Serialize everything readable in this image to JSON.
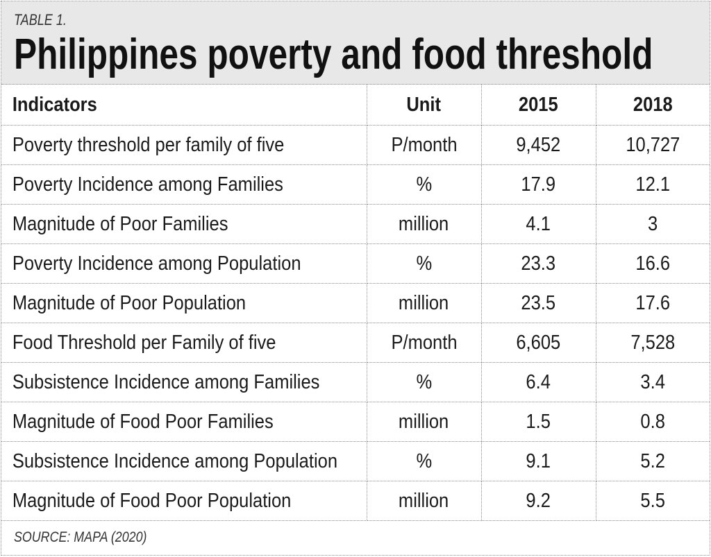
{
  "header": {
    "label": "TABLE 1.",
    "title": "Philippines poverty and food threshold"
  },
  "table": {
    "columns": [
      "Indicators",
      "Unit",
      "2015",
      "2018"
    ],
    "rows": [
      [
        "Poverty threshold per family of five",
        "P/month",
        "9,452",
        "10,727"
      ],
      [
        "Poverty Incidence among Families",
        "%",
        "17.9",
        "12.1"
      ],
      [
        "Magnitude of Poor Families",
        "million",
        "4.1",
        "3"
      ],
      [
        "Poverty Incidence among Population",
        "%",
        "23.3",
        "16.6"
      ],
      [
        "Magnitude of Poor Population",
        "million",
        "23.5",
        "17.6"
      ],
      [
        "Food Threshold per Family of five",
        "P/month",
        "6,605",
        "7,528"
      ],
      [
        "Subsistence Incidence among Families",
        "%",
        "6.4",
        "3.4"
      ],
      [
        "Magnitude of Food Poor Families",
        "million",
        "1.5",
        "0.8"
      ],
      [
        "Subsistence Incidence among Population",
        "%",
        "9.1",
        "5.2"
      ],
      [
        "Magnitude of Food Poor Population",
        "million",
        "9.2",
        "5.5"
      ]
    ]
  },
  "footer": {
    "source": "SOURCE: MAPA (2020)"
  },
  "colors": {
    "header_background": "#e8e8e8",
    "text": "#1a1a1a",
    "rule": "#8a8a8a"
  }
}
